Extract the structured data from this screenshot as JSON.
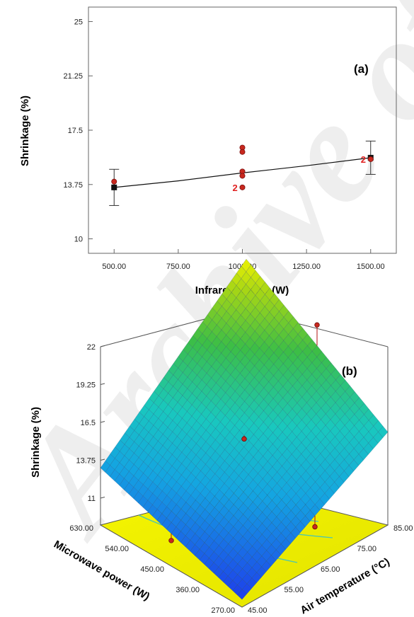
{
  "watermark": "Archive of SID",
  "chart_data": [
    {
      "type": "scatter",
      "panel_label": "(a)",
      "xlabel": "Infrared power (W)",
      "ylabel": "Shrinkage (%)",
      "xlim": [
        400,
        1600
      ],
      "ylim": [
        9,
        26
      ],
      "xticks": [
        500,
        750,
        1000,
        1250,
        1500
      ],
      "xtick_labels": [
        "500.00",
        "750.00",
        "1000.00",
        "1250.00",
        "1500.00"
      ],
      "yticks": [
        10,
        13.75,
        17.5,
        21.25,
        25
      ],
      "ytick_labels": [
        "10",
        "13.75",
        "17.5",
        "21.25",
        "25"
      ],
      "fit_line": {
        "x": [
          500,
          750,
          1000,
          1250,
          1500
        ],
        "y": [
          13.55,
          14.0,
          14.55,
          15.05,
          15.6
        ]
      },
      "predicted_points": [
        {
          "x": 500,
          "y": 13.55,
          "low": 12.3,
          "high": 14.8
        },
        {
          "x": 1500,
          "y": 15.6,
          "low": 14.45,
          "high": 16.75
        }
      ],
      "observed_points": [
        {
          "x": 500,
          "y": 13.95
        },
        {
          "x": 1000,
          "y": 16.3
        },
        {
          "x": 1000,
          "y": 16.0
        },
        {
          "x": 1000,
          "y": 14.65
        },
        {
          "x": 1000,
          "y": 14.35
        },
        {
          "x": 1000,
          "y": 13.55
        },
        {
          "x": 1500,
          "y": 15.5
        }
      ],
      "replicate_labels": [
        {
          "x": 1000,
          "y": 13.55,
          "text": "2"
        },
        {
          "x": 1500,
          "y": 15.5,
          "text": "2"
        }
      ]
    },
    {
      "type": "surface",
      "panel_label": "(b)",
      "zlabel": "Shrinkage (%)",
      "xlabel": "Air temperature (°C)",
      "ylabel": "Microwave power (W)",
      "zticks": [
        11,
        13.75,
        16.5,
        19.25,
        22
      ],
      "ztick_labels": [
        "11",
        "13.75",
        "16.5",
        "19.25",
        "22"
      ],
      "xticks": [
        45,
        55,
        65,
        75,
        85
      ],
      "xtick_labels": [
        "45.00",
        "55.00",
        "65.00",
        "75.00",
        "85.00"
      ],
      "yticks": [
        270,
        360,
        450,
        540,
        630
      ],
      "ytick_labels": [
        "270.00",
        "360.00",
        "450.00",
        "540.00",
        "630.00"
      ],
      "surface_corners": {
        "temp45_mw270": 9.6,
        "temp85_mw270": 15.8,
        "temp45_mw630": 13.2,
        "temp85_mw630": 22.4
      },
      "design_points": [
        {
          "temp": 45,
          "mw": 450,
          "z": 10.9
        },
        {
          "temp": 85,
          "mw": 450,
          "z": 20.6
        },
        {
          "temp": 65,
          "mw": 270,
          "z": 11.9
        },
        {
          "temp": 65,
          "mw": 450,
          "z": 15.3
        }
      ]
    }
  ]
}
